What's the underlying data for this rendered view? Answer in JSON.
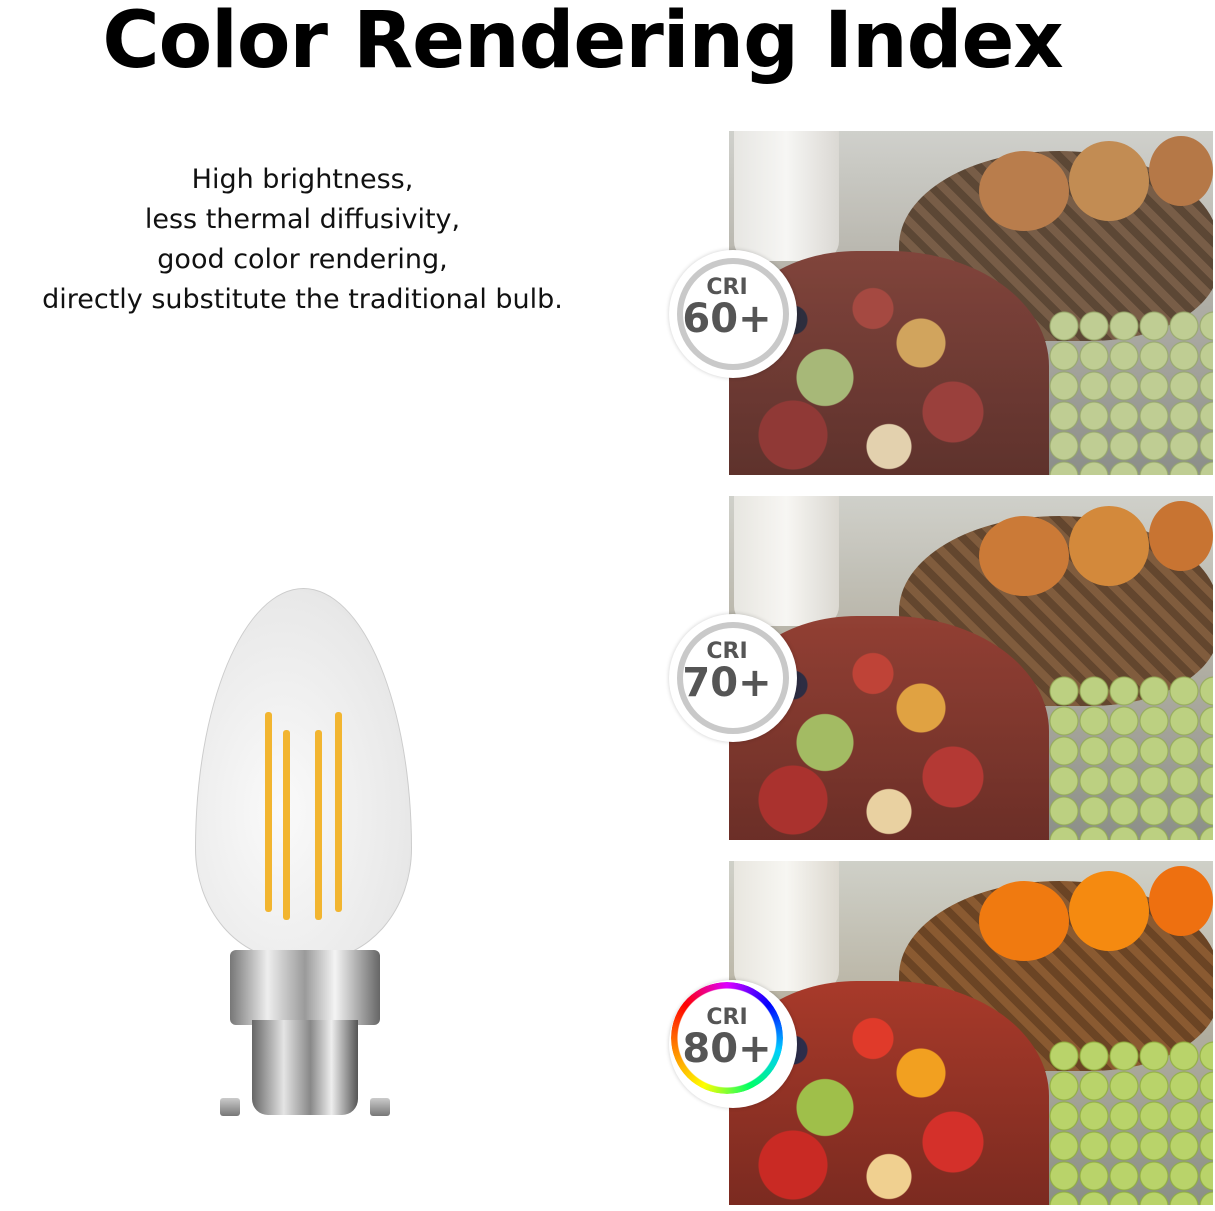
{
  "title": "Color Rendering Index",
  "description": [
    "High brightness,",
    "less thermal diffusivity,",
    "good color rendering,",
    "directly substitute the traditional bulb."
  ],
  "badges": [
    {
      "label": "CRI",
      "value": "60+",
      "ring": "gray"
    },
    {
      "label": "CRI",
      "value": "70+",
      "ring": "gray"
    },
    {
      "label": "CRI",
      "value": "80+",
      "ring": "rainbow"
    }
  ]
}
